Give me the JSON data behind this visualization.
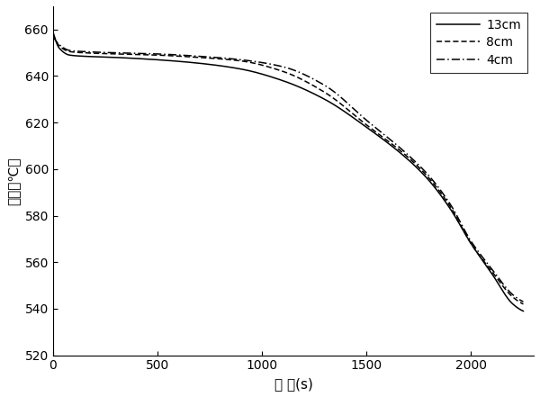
{
  "title": "",
  "xlabel": "时 间(s)",
  "ylabel": "温度（℃）",
  "xlim": [
    0,
    2300
  ],
  "ylim": [
    520,
    670
  ],
  "xticks": [
    0,
    500,
    1000,
    1500,
    2000
  ],
  "yticks": [
    520,
    540,
    560,
    580,
    600,
    620,
    640,
    660
  ],
  "legend_labels": [
    "13cm",
    "8cm",
    "4cm"
  ],
  "line_color": "#000000",
  "background_color": "#ffffff"
}
